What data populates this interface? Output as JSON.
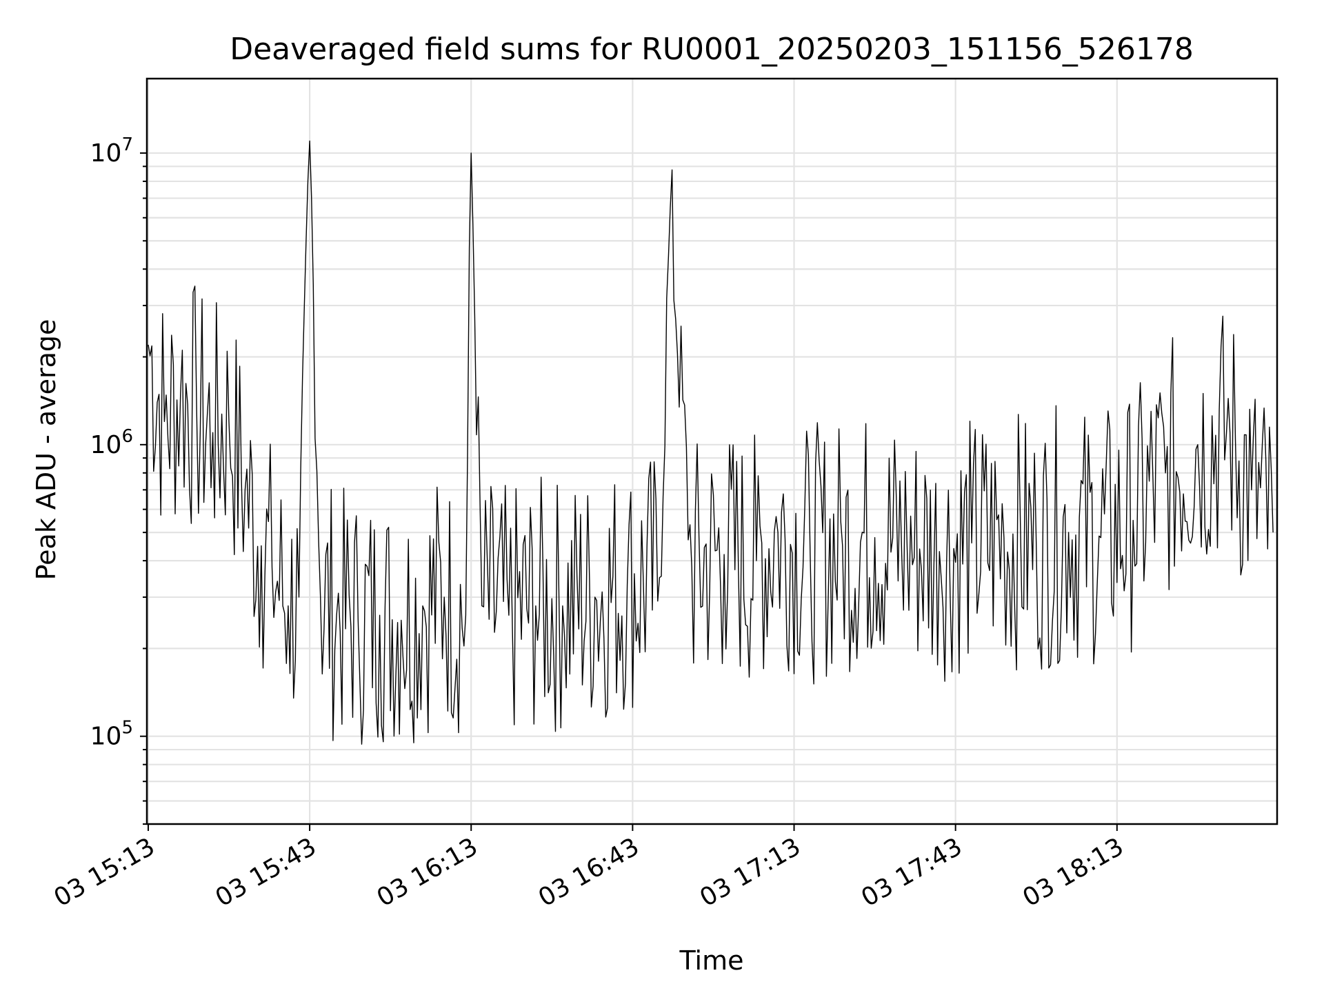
{
  "chart_data": {
    "type": "line",
    "title": "Deaveraged field sums for RU0001_20250203_151156_526178",
    "xlabel": "Time",
    "ylabel": "Peak ADU - average",
    "yscale": "log",
    "ylim": [
      50000,
      18000000
    ],
    "xlim": [
      "2025-02-03 15:12:45",
      "2025-02-03 18:42:45"
    ],
    "grid": true,
    "x_ticks": [
      "03 15:13",
      "03 15:43",
      "03 16:13",
      "03 16:43",
      "03 17:13",
      "03 17:43",
      "03 18:13"
    ],
    "x_tick_times": [
      "2025-02-03 15:13",
      "2025-02-03 15:43",
      "2025-02-03 16:13",
      "2025-02-03 16:43",
      "2025-02-03 17:13",
      "2025-02-03 17:43",
      "2025-02-03 18:13"
    ],
    "y_ticks": [
      {
        "value": 100000,
        "base": "10",
        "exp": "5"
      },
      {
        "value": 1000000,
        "base": "10",
        "exp": "6"
      },
      {
        "value": 10000000,
        "base": "10",
        "exp": "7"
      }
    ],
    "series": [
      {
        "color": "#000000",
        "points": [
          [
            "2025-02-03 15:13",
            2200000
          ],
          [
            "2025-02-03 15:16",
            1200000
          ],
          [
            "2025-02-03 15:19",
            1500000
          ],
          [
            "2025-02-03 15:22",
            1300000
          ],
          [
            "2025-02-03 15:25",
            1100000
          ],
          [
            "2025-02-03 15:28",
            1200000
          ],
          [
            "2025-02-03 15:31",
            700000
          ],
          [
            "2025-02-03 15:34",
            450000
          ],
          [
            "2025-02-03 15:36",
            380000
          ],
          [
            "2025-02-03 15:39",
            280000
          ],
          [
            "2025-02-03 15:41",
            300000
          ],
          [
            "2025-02-03 15:43",
            11000000
          ],
          [
            "2025-02-03 15:45",
            300000
          ],
          [
            "2025-02-03 15:48",
            260000
          ],
          [
            "2025-02-03 15:52",
            250000
          ],
          [
            "2025-02-03 15:56",
            260000
          ],
          [
            "2025-02-03 16:00",
            250000
          ],
          [
            "2025-02-03 16:04",
            280000
          ],
          [
            "2025-02-03 16:08",
            300000
          ],
          [
            "2025-02-03 16:12",
            260000
          ],
          [
            "2025-02-03 16:13",
            10000000
          ],
          [
            "2025-02-03 16:15",
            280000
          ],
          [
            "2025-02-03 16:20",
            260000
          ],
          [
            "2025-02-03 16:25",
            280000
          ],
          [
            "2025-02-03 16:30",
            280000
          ],
          [
            "2025-02-03 16:36",
            300000
          ],
          [
            "2025-02-03 16:42",
            330000
          ],
          [
            "2025-02-03 16:48",
            350000
          ],
          [
            "2025-02-03 16:50",
            6500000
          ],
          [
            "2025-02-03 16:54",
            380000
          ],
          [
            "2025-02-03 17:00",
            420000
          ],
          [
            "2025-02-03 17:06",
            400000
          ],
          [
            "2025-02-03 17:10",
            500000
          ],
          [
            "2025-02-03 17:16",
            420000
          ],
          [
            "2025-02-03 17:22",
            450000
          ],
          [
            "2025-02-03 17:28",
            480000
          ],
          [
            "2025-02-03 17:34",
            450000
          ],
          [
            "2025-02-03 17:40",
            430000
          ],
          [
            "2025-02-03 17:46",
            460000
          ],
          [
            "2025-02-03 17:52",
            480000
          ],
          [
            "2025-02-03 17:58",
            460000
          ],
          [
            "2025-02-03 18:04",
            500000
          ],
          [
            "2025-02-03 18:10",
            480000
          ],
          [
            "2025-02-03 18:16",
            550000
          ],
          [
            "2025-02-03 18:22",
            800000
          ],
          [
            "2025-02-03 18:28",
            1000000
          ],
          [
            "2025-02-03 18:34",
            1100000
          ],
          [
            "2025-02-03 18:38",
            700000
          ],
          [
            "2025-02-03 18:42",
            500000
          ]
        ]
      }
    ]
  }
}
